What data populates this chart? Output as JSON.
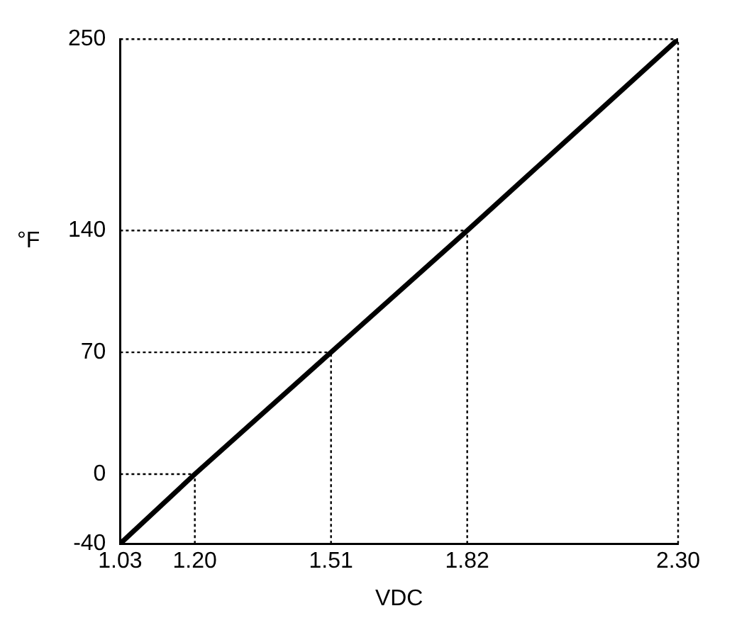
{
  "chart_data": {
    "type": "line",
    "xlabel": "VDC",
    "ylabel": "°F",
    "x": [
      1.03,
      1.2,
      1.51,
      1.82,
      2.3
    ],
    "series": [
      {
        "color": "#000000",
        "values": [
          -40,
          0,
          70,
          140,
          250
        ]
      }
    ],
    "xlim": [
      1.03,
      2.3
    ],
    "ylim": [
      -40,
      250
    ],
    "xticks": [
      {
        "value": 1.03,
        "label": "1.03"
      },
      {
        "value": 1.2,
        "label": "1.20"
      },
      {
        "value": 1.51,
        "label": "1.51"
      },
      {
        "value": 1.82,
        "label": "1.82"
      },
      {
        "value": 2.3,
        "label": "2.30"
      }
    ],
    "yticks": [
      -40,
      0,
      70,
      140,
      250
    ],
    "ref_lines": [
      {
        "axis": "x",
        "value": 1.2,
        "line_style": "dotted",
        "color": "#000000"
      },
      {
        "axis": "x",
        "value": 1.51,
        "line_style": "dotted",
        "color": "#000000"
      },
      {
        "axis": "x",
        "value": 1.82,
        "line_style": "dotted",
        "color": "#000000"
      },
      {
        "axis": "x",
        "value": 2.3,
        "line_style": "dotted",
        "color": "#000000"
      },
      {
        "axis": "y",
        "value": 0,
        "line_style": "dotted",
        "color": "#000000"
      },
      {
        "axis": "y",
        "value": 70,
        "line_style": "dotted",
        "color": "#000000"
      },
      {
        "axis": "y",
        "value": 140,
        "line_style": "dotted",
        "color": "#000000"
      },
      {
        "axis": "y",
        "value": 250,
        "line_style": "dotted",
        "color": "#000000"
      }
    ],
    "grid": false,
    "legend": false,
    "marker": "none",
    "line_style": "solid"
  }
}
